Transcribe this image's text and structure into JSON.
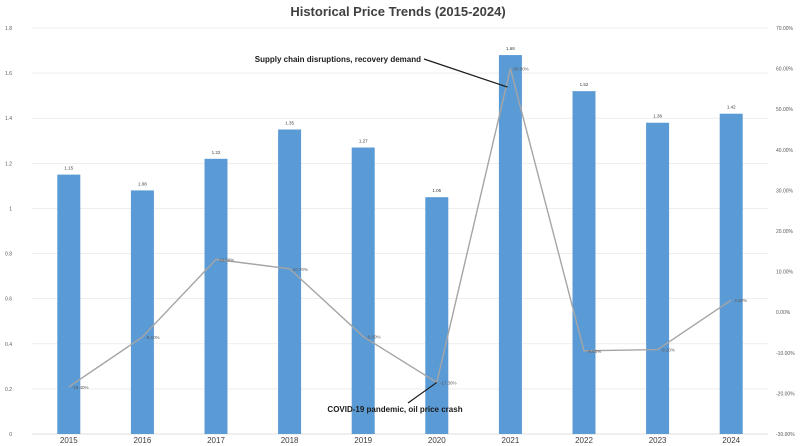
{
  "chart_data": {
    "type": "bar",
    "title": "Historical Price Trends (2015-2024)",
    "categories": [
      "2015",
      "2016",
      "2017",
      "2018",
      "2019",
      "2020",
      "2021",
      "2022",
      "2023",
      "2024"
    ],
    "series": [
      {
        "type": "bar",
        "axis": "left",
        "values": [
          1.15,
          1.08,
          1.22,
          1.35,
          1.27,
          1.05,
          1.68,
          1.52,
          1.38,
          1.42
        ],
        "color": "#5B9BD5"
      },
      {
        "type": "line",
        "axis": "right",
        "values": [
          -18.4,
          -6.1,
          13.0,
          10.7,
          -6.0,
          -17.3,
          60.0,
          -9.5,
          -9.2,
          3.0
        ],
        "labels": [
          "-18.40%",
          "-6.10%",
          "13.00%",
          "10.70%",
          "-6.00%",
          "-17.30%",
          "60.00%",
          "-9.50%",
          "-9.20%",
          "3.00%"
        ],
        "color": "#A5A5A5"
      }
    ],
    "y_left": {
      "min": 0,
      "max": 1.8,
      "step": 0.2,
      "ticks": [
        "0",
        "0.2",
        "0.4",
        "0.6",
        "0.8",
        "1",
        "1.2",
        "1.4",
        "1.6",
        "1.8"
      ]
    },
    "y_right": {
      "min": -30,
      "max": 70,
      "step": 10,
      "ticks": [
        "-30.00%",
        "-20.00%",
        "-10.00%",
        "0.00%",
        "10.00%",
        "20.00%",
        "30.00%",
        "40.00%",
        "50.00%",
        "60.00%",
        "70.00%"
      ]
    },
    "bar_labels": [
      "1.15",
      "1.08",
      "1.22",
      "1.35",
      "1.27",
      "1.05",
      "1.68",
      "1.52",
      "1.38",
      "1.42"
    ],
    "annotations": [
      {
        "text": "Supply chain disruptions, recovery demand",
        "category": "2021"
      },
      {
        "text": "COVID-19 pandemic, oil price crash",
        "category": "2020"
      }
    ],
    "grid": true
  }
}
